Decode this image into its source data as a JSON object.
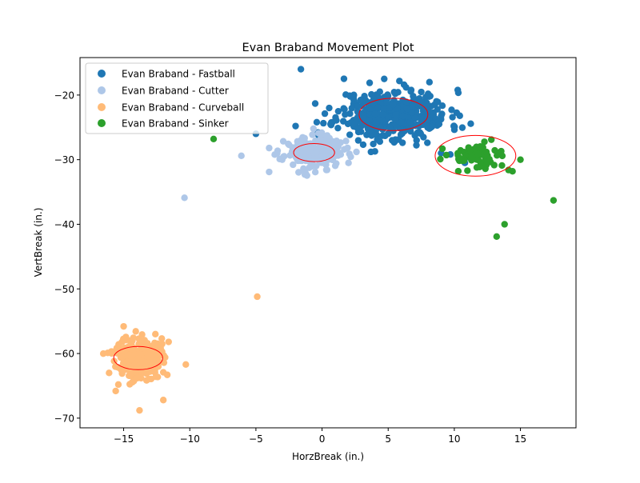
{
  "chart_data": {
    "type": "scatter",
    "title": "Evan Braband Movement Plot",
    "xlabel": "HorzBreak (in.)",
    "ylabel": "VertBreak (in.)",
    "xlim": [
      -18.3,
      19.2
    ],
    "ylim": [
      -71.5,
      -14.2
    ],
    "xticks": [
      -15,
      -10,
      -5,
      0,
      5,
      10,
      15
    ],
    "yticks": [
      -70,
      -60,
      -50,
      -40,
      -30,
      -20
    ],
    "xtick_labels": [
      "−15",
      "−10",
      "−5",
      "0",
      "5",
      "10",
      "15"
    ],
    "ytick_labels": [
      "−70",
      "−60",
      "−50",
      "−40",
      "−30",
      "−20"
    ],
    "grid": false,
    "legend_position": "top-left",
    "series": [
      {
        "name": "Evan Braband - Fastball",
        "color": "#1f77b4",
        "cluster": {
          "cx": 5.4,
          "cy": -23.0,
          "sx": 2.1,
          "sy": 1.9,
          "n": 420,
          "seed": 11
        },
        "outliers": [
          [
            -1.6,
            -16.0
          ],
          [
            -5.0,
            -26.0
          ],
          [
            -2.0,
            -24.8
          ],
          [
            -0.4,
            -24.2
          ],
          [
            5.3,
            -27.0
          ],
          [
            10.8,
            -30.5
          ],
          [
            9.0,
            -29.0
          ],
          [
            3.7,
            -28.8
          ],
          [
            7.4,
            -25.8
          ],
          [
            6.2,
            -18.4
          ],
          [
            4.7,
            -17.5
          ],
          [
            11.0,
            -29.6
          ],
          [
            -0.3,
            -25.8
          ],
          [
            9.7,
            -29.2
          ],
          [
            2.9,
            -20.8
          ]
        ],
        "ellipse": {
          "cx": 5.4,
          "cy": -23.0,
          "rx": 2.6,
          "ry": 2.5
        }
      },
      {
        "name": "Evan Braband - Cutter",
        "color": "#aec7e8",
        "cluster": {
          "cx": -0.6,
          "cy": -28.9,
          "sx": 1.1,
          "sy": 1.2,
          "n": 200,
          "seed": 23
        },
        "outliers": [
          [
            -10.4,
            -35.9
          ],
          [
            -6.1,
            -29.4
          ],
          [
            -4.0,
            -28.2
          ],
          [
            -4.0,
            -31.9
          ],
          [
            -3.2,
            -29.9
          ],
          [
            2.0,
            -30.5
          ],
          [
            -1.3,
            -32.3
          ],
          [
            1.1,
            -27.1
          ],
          [
            2.6,
            -28.8
          ],
          [
            -2.5,
            -27.7
          ]
        ],
        "ellipse": {
          "cx": -0.6,
          "cy": -28.9,
          "rx": 1.55,
          "ry": 1.4
        }
      },
      {
        "name": "Evan Braband - Curveball",
        "color": "#ffbb78",
        "cluster": {
          "cx": -13.9,
          "cy": -60.7,
          "sx": 0.85,
          "sy": 1.7,
          "n": 240,
          "seed": 37
        },
        "outliers": [
          [
            -4.9,
            -51.2
          ],
          [
            -10.3,
            -61.7
          ],
          [
            -12.0,
            -67.2
          ],
          [
            -13.8,
            -68.8
          ],
          [
            -15.6,
            -65.8
          ],
          [
            -16.1,
            -63.0
          ],
          [
            -16.2,
            -59.9
          ],
          [
            -11.6,
            -58.2
          ],
          [
            -11.7,
            -63.3
          ],
          [
            -15.0,
            -55.8
          ],
          [
            -12.6,
            -57.0
          ],
          [
            -15.4,
            -64.8
          ]
        ],
        "ellipse": {
          "cx": -13.9,
          "cy": -60.7,
          "rx": 1.85,
          "ry": 1.8
        }
      },
      {
        "name": "Evan Braband - Sinker",
        "color": "#2ca02c",
        "cluster": {
          "cx": 11.6,
          "cy": -29.4,
          "sx": 1.0,
          "sy": 1.0,
          "n": 75,
          "seed": 53
        },
        "outliers": [
          [
            -8.2,
            -26.8
          ],
          [
            17.5,
            -36.3
          ],
          [
            13.8,
            -40.0
          ],
          [
            13.2,
            -41.9
          ],
          [
            15.0,
            -30.0
          ],
          [
            14.4,
            -31.8
          ],
          [
            14.1,
            -31.6
          ],
          [
            12.8,
            -26.9
          ],
          [
            13.4,
            -28.9
          ],
          [
            13.6,
            -30.9
          ],
          [
            9.1,
            -28.3
          ]
        ],
        "ellipse": {
          "cx": 11.6,
          "cy": -29.4,
          "rx": 3.05,
          "ry": 3.15
        }
      }
    ]
  }
}
